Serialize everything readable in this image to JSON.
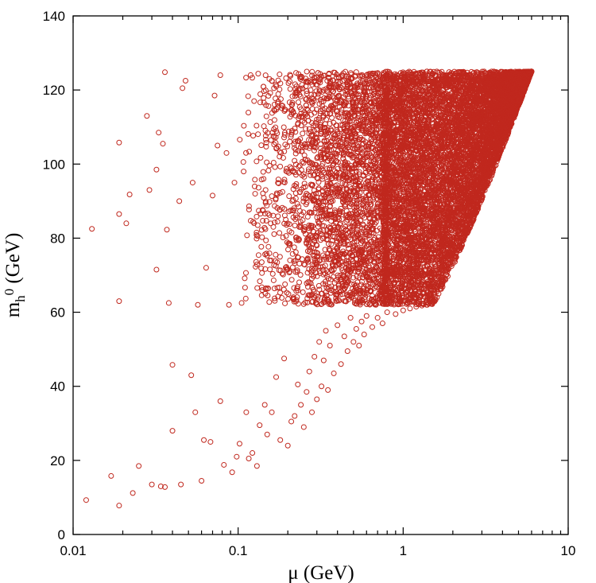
{
  "chart_data": {
    "type": "scatter",
    "x_scale": "log",
    "xlim": [
      0.01,
      10
    ],
    "ylim": [
      0,
      140
    ],
    "xlabel": "μ (GeV)",
    "ylabel_main": "m",
    "ylabel_sub": "h",
    "ylabel_sup": "0",
    "ylabel_unit": " (GeV)",
    "x_ticks": [
      0.01,
      0.1,
      1,
      10
    ],
    "x_tick_labels": [
      "0.01",
      "0.1",
      "1",
      "10"
    ],
    "y_ticks": [
      0,
      20,
      40,
      60,
      80,
      100,
      120,
      140
    ],
    "y_tick_labels": [
      "0",
      "20",
      "40",
      "60",
      "80",
      "100",
      "120",
      "140"
    ],
    "grid": false,
    "marker": "open-circle",
    "marker_color": "#c0281e",
    "series": [
      {
        "points": [
          [
            0.012,
            9.3
          ],
          [
            0.013,
            82.5
          ],
          [
            0.017,
            15.8
          ],
          [
            0.019,
            7.8
          ],
          [
            0.019,
            105.8
          ],
          [
            0.019,
            63.0
          ],
          [
            0.019,
            86.5
          ],
          [
            0.021,
            84.0
          ],
          [
            0.022,
            91.8
          ],
          [
            0.023,
            11.2
          ],
          [
            0.025,
            18.5
          ],
          [
            0.028,
            113.0
          ],
          [
            0.029,
            93.0
          ],
          [
            0.03,
            13.5
          ],
          [
            0.032,
            71.5
          ],
          [
            0.032,
            98.5
          ],
          [
            0.033,
            108.5
          ],
          [
            0.034,
            13.0
          ],
          [
            0.035,
            105.5
          ],
          [
            0.036,
            12.8
          ],
          [
            0.036,
            124.8
          ],
          [
            0.037,
            82.3
          ],
          [
            0.038,
            62.5
          ],
          [
            0.04,
            28.0
          ],
          [
            0.04,
            45.8
          ],
          [
            0.044,
            90.0
          ],
          [
            0.045,
            13.5
          ],
          [
            0.046,
            120.5
          ],
          [
            0.048,
            122.5
          ],
          [
            0.052,
            43.0
          ],
          [
            0.053,
            95.0
          ],
          [
            0.055,
            33.0
          ],
          [
            0.057,
            62.0
          ],
          [
            0.06,
            14.5
          ],
          [
            0.062,
            25.5
          ],
          [
            0.064,
            72.0
          ],
          [
            0.068,
            25.0
          ],
          [
            0.07,
            91.5
          ],
          [
            0.072,
            118.5
          ],
          [
            0.075,
            105.0
          ],
          [
            0.078,
            36.0
          ],
          [
            0.078,
            124.0
          ],
          [
            0.082,
            18.8
          ],
          [
            0.085,
            103.0
          ],
          [
            0.088,
            62.0
          ],
          [
            0.092,
            16.8
          ],
          [
            0.095,
            95.0
          ],
          [
            0.098,
            21.0
          ],
          [
            0.102,
            24.5
          ],
          [
            0.105,
            62.5
          ],
          [
            0.108,
            98.0
          ],
          [
            0.112,
            33.0
          ],
          [
            0.116,
            20.5
          ],
          [
            0.122,
            22.0
          ],
          [
            0.125,
            117.0
          ],
          [
            0.13,
            18.5
          ],
          [
            0.135,
            29.5
          ],
          [
            0.14,
            66.0
          ],
          [
            0.145,
            35.0
          ],
          [
            0.15,
            27.0
          ],
          [
            0.16,
            33.0
          ],
          [
            0.17,
            42.5
          ],
          [
            0.18,
            25.5
          ],
          [
            0.19,
            47.5
          ],
          [
            0.2,
            24.0
          ],
          [
            0.21,
            30.5
          ],
          [
            0.22,
            32.0
          ],
          [
            0.23,
            40.5
          ],
          [
            0.24,
            35.0
          ],
          [
            0.25,
            29.0
          ],
          [
            0.26,
            38.5
          ],
          [
            0.27,
            44.0
          ],
          [
            0.28,
            33.0
          ],
          [
            0.29,
            48.0
          ],
          [
            0.3,
            36.5
          ],
          [
            0.31,
            52.0
          ],
          [
            0.32,
            40.0
          ],
          [
            0.33,
            47.0
          ],
          [
            0.34,
            55.0
          ],
          [
            0.35,
            39.0
          ],
          [
            0.36,
            51.0
          ],
          [
            0.38,
            43.5
          ],
          [
            0.4,
            56.5
          ],
          [
            0.42,
            46.0
          ],
          [
            0.44,
            53.5
          ],
          [
            0.46,
            49.5
          ],
          [
            0.48,
            58.5
          ],
          [
            0.5,
            52.0
          ],
          [
            0.52,
            55.5
          ],
          [
            0.54,
            51.0
          ],
          [
            0.56,
            57.5
          ],
          [
            0.58,
            54.0
          ],
          [
            0.6,
            59.0
          ],
          [
            0.65,
            56.0
          ],
          [
            0.7,
            58.5
          ],
          [
            0.75,
            57.0
          ],
          [
            0.8,
            60.0
          ],
          [
            0.9,
            59.5
          ],
          [
            1.0,
            60.5
          ],
          [
            1.1,
            61.0
          ],
          [
            1.2,
            61.5
          ],
          [
            1.3,
            61.8
          ],
          [
            1.4,
            62.0
          ],
          [
            1.5,
            62.3
          ]
        ]
      }
    ],
    "dense_region": {
      "x_min": 0.75,
      "x_max": 6.0,
      "y_min": 62,
      "y_max": 125,
      "lower_boundary_y_at_x_max": 125
    },
    "scatter_cloud": {
      "x_min": 0.1,
      "x_max": 0.8,
      "y_min": 62,
      "y_max": 125
    }
  }
}
